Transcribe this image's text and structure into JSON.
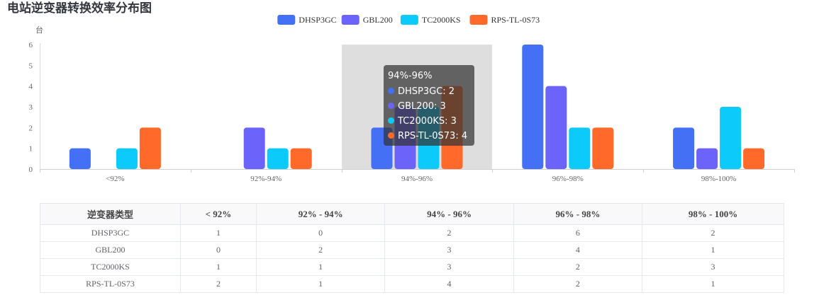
{
  "page": {
    "title": "电站逆变器转换效率分布图"
  },
  "colors": {
    "DHSP3GC": "#4470f5",
    "GBL200": "#6c63fb",
    "TC2000KS": "#0ccbfa",
    "RPS-TL-0S73": "#ff6a2b"
  },
  "chart_data": {
    "type": "bar",
    "title": "电站逆变器转换效率分布图",
    "ylabel": "台",
    "xlabel": "",
    "ylim": [
      0,
      6
    ],
    "yticks": [
      "0",
      "1",
      "2",
      "3",
      "4",
      "5",
      "6"
    ],
    "categories": [
      "<92%",
      "92%-94%",
      "94%-96%",
      "96%-98%",
      "98%-100%"
    ],
    "series": [
      {
        "name": "DHSP3GC",
        "values": [
          1,
          0,
          2,
          6,
          2
        ]
      },
      {
        "name": "GBL200",
        "values": [
          0,
          2,
          3,
          4,
          1
        ]
      },
      {
        "name": "TC2000KS",
        "values": [
          1,
          1,
          3,
          2,
          3
        ]
      },
      {
        "name": "RPS-TL-0S73",
        "values": [
          2,
          1,
          4,
          2,
          1
        ]
      }
    ],
    "legend_position": "top-center",
    "highlighted_category": "94%-96%"
  },
  "tooltip": {
    "title": "94%-96%",
    "rows": [
      {
        "text": "DHSP3GC: 2"
      },
      {
        "text": "GBL200: 3"
      },
      {
        "text": "TC2000KS: 3"
      },
      {
        "text": "RPS-TL-0S73: 4"
      }
    ]
  },
  "table": {
    "headers": [
      "逆变器类型",
      "< 92%",
      "92% - 94%",
      "94% - 96%",
      "96% - 98%",
      "98% - 100%"
    ],
    "rows": [
      [
        "DHSP3GC",
        "1",
        "0",
        "2",
        "6",
        "2"
      ],
      [
        "GBL200",
        "0",
        "2",
        "3",
        "4",
        "1"
      ],
      [
        "TC2000KS",
        "1",
        "1",
        "3",
        "2",
        "3"
      ],
      [
        "RPS-TL-0S73",
        "2",
        "1",
        "4",
        "2",
        "1"
      ]
    ]
  }
}
